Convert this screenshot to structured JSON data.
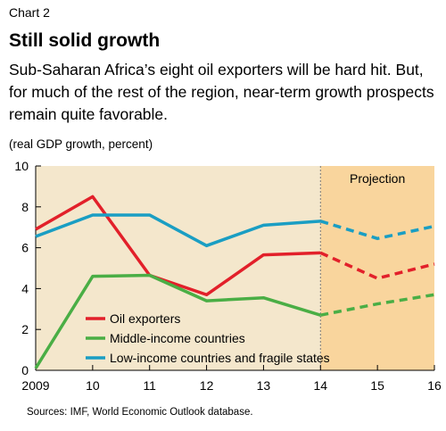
{
  "header": {
    "chart_label": "Chart 2",
    "title": "Still solid growth",
    "subtitle": "Sub-Saharan Africa’s eight oil exporters will be hard hit. But, for much of the rest of the region, near-term growth prospects remain quite favorable.",
    "unit_note": "(real GDP growth, percent)"
  },
  "source": "Sources: IMF, World Economic Outlook database.",
  "chart_data": {
    "type": "line",
    "title": "Still solid growth",
    "ylabel": "(real GDP growth, percent)",
    "xlabel": "",
    "x": [
      "2009",
      "10",
      "11",
      "12",
      "13",
      "14",
      "15",
      "16"
    ],
    "ylim": [
      0,
      10
    ],
    "yticks": [
      0,
      2,
      4,
      6,
      8,
      10
    ],
    "grid": false,
    "projection_start_index": 5,
    "projection_label": "Projection",
    "legend_position": "bottom-left",
    "colors": {
      "plot_background": "#f4e7cc",
      "projection_background": "#f9d59d",
      "projection_divider": "#7a7a7a"
    },
    "series": [
      {
        "name": "Oil exporters",
        "color": "#e2202a",
        "values": [
          6.9,
          8.5,
          4.65,
          3.7,
          5.65,
          5.75,
          4.5,
          5.2
        ]
      },
      {
        "name": "Middle-income countries",
        "color": "#4aae45",
        "values": [
          0.1,
          4.6,
          4.65,
          3.4,
          3.55,
          2.7,
          3.25,
          3.7
        ]
      },
      {
        "name": "Low-income countries and fragile states",
        "color": "#1a9ec3",
        "values": [
          6.55,
          7.6,
          7.6,
          6.1,
          7.1,
          7.3,
          6.45,
          7.05
        ]
      }
    ]
  }
}
